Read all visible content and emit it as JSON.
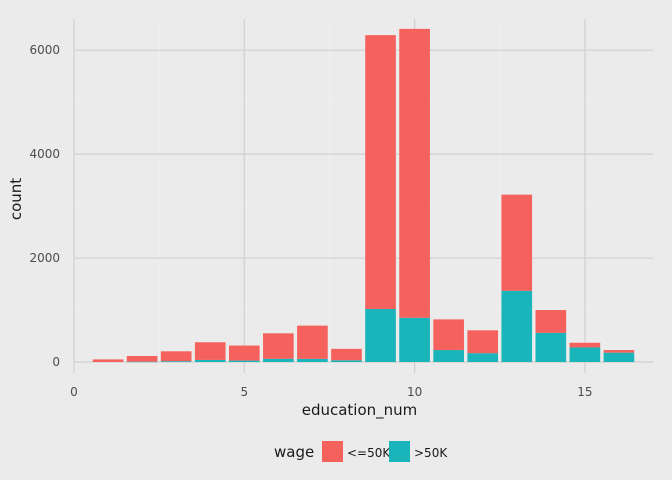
{
  "chart_data": {
    "type": "bar",
    "stacked": true,
    "xlabel": "education_num",
    "ylabel": "count",
    "xlim": [
      0,
      17
    ],
    "ylim": [
      0,
      6600
    ],
    "xticks": [
      "0",
      "5",
      "10",
      "15"
    ],
    "yticks": [
      "0",
      "2000",
      "4000",
      "6000"
    ],
    "grid": true,
    "legend": {
      "title": "wage",
      "position": "bottom"
    },
    "x": [
      1,
      2,
      3,
      4,
      5,
      6,
      7,
      8,
      9,
      10,
      11,
      12,
      13,
      14,
      15,
      16
    ],
    "series": [
      {
        "name": ">50K",
        "color": "#19b5ba",
        "values": [
          0,
          6,
          16,
          40,
          27,
          62,
          60,
          33,
          1020,
          850,
          230,
          170,
          1370,
          560,
          280,
          180
        ]
      },
      {
        "name": "<=50K",
        "color": "#f5625d",
        "values": [
          50,
          110,
          190,
          340,
          290,
          490,
          640,
          220,
          5270,
          5560,
          590,
          440,
          1850,
          440,
          90,
          50
        ]
      }
    ]
  }
}
